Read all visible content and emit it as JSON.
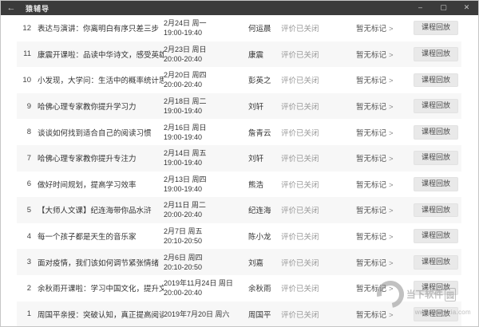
{
  "window": {
    "title": "猿辅导",
    "back_icon": "←",
    "controls": {
      "minimize": "–",
      "maximize": "▢",
      "close": "✕"
    }
  },
  "list": {
    "chevron": ">",
    "rows": [
      {
        "num": "12",
        "title": "表达与演讲：你离明白有序只差三步",
        "date": "2月24日 周一",
        "time": "19:00-19:40",
        "teacher": "何运晨",
        "status": "评价已关闭",
        "mark": "暂无标记",
        "action": "课程回放"
      },
      {
        "num": "11",
        "title": "康震开课啦：品读中华诗文，感受英雄力量",
        "date": "2月23日 周日",
        "time": "20:00-20:40",
        "teacher": "康震",
        "status": "评价已关闭",
        "mark": "暂无标记",
        "action": "课程回放"
      },
      {
        "num": "10",
        "title": "小发现，大学问：生活中的概率统计思维",
        "date": "2月20日 周四",
        "time": "20:00-20:40",
        "teacher": "彭英之",
        "status": "评价已关闭",
        "mark": "暂无标记",
        "action": "课程回放"
      },
      {
        "num": "9",
        "title": "哈佛心理专家教你提升学习力",
        "date": "2月18日 周二",
        "time": "19:00-19:40",
        "teacher": "刘轩",
        "status": "评价已关闭",
        "mark": "暂无标记",
        "action": "课程回放"
      },
      {
        "num": "8",
        "title": "谈谈如何找到适合自己的阅读习惯",
        "date": "2月16日 周日",
        "time": "19:00-19:40",
        "teacher": "詹青云",
        "status": "评价已关闭",
        "mark": "暂无标记",
        "action": "课程回放"
      },
      {
        "num": "7",
        "title": "哈佛心理专家教你提升专注力",
        "date": "2月14日 周五",
        "time": "19:00-19:40",
        "teacher": "刘轩",
        "status": "评价已关闭",
        "mark": "暂无标记",
        "action": "课程回放"
      },
      {
        "num": "6",
        "title": "做好时间规划，提高学习效率",
        "date": "2月13日 周四",
        "time": "19:00-19:40",
        "teacher": "熊浩",
        "status": "评价已关闭",
        "mark": "暂无标记",
        "action": "课程回放"
      },
      {
        "num": "5",
        "title": "【大师人文课】纪连海带你品水浒",
        "date": "2月11日 周二",
        "time": "20:00-20:40",
        "teacher": "纪连海",
        "status": "评价已关闭",
        "mark": "暂无标记",
        "action": "课程回放"
      },
      {
        "num": "4",
        "title": "每一个孩子都是天生的音乐家",
        "date": "2月7日 周五",
        "time": "20:10-20:50",
        "teacher": "陈小龙",
        "status": "评价已关闭",
        "mark": "暂无标记",
        "action": "课程回放"
      },
      {
        "num": "3",
        "title": "面对疫情，我们该如何调节紧张情绪",
        "date": "2月6日 周四",
        "time": "20:10-20:50",
        "teacher": "刘嘉",
        "status": "评价已关闭",
        "mark": "暂无标记",
        "action": "课程回放"
      },
      {
        "num": "2",
        "title": "余秋雨开课啦：学习中国文化，提升文学素养",
        "date": "2019年11月24日 周日",
        "time": "20:00-20:40",
        "teacher": "余秋雨",
        "status": "评价已关闭",
        "mark": "暂无标记",
        "action": "课程回放"
      },
      {
        "num": "1",
        "title": "周国平亲授：突破认知，真正提高阅读与写作能力",
        "date": "2019年7月20日 周六",
        "time": "",
        "teacher": "周国平",
        "status": "评价已关闭",
        "mark": "暂无标记",
        "action": "课程回放"
      }
    ]
  },
  "watermark": {
    "site_name": "当下软件",
    "site_suffix": "园",
    "url": "www.downxia.com"
  },
  "colors": {
    "titlebar_bg": "#3b3b3b",
    "row_alt_bg": "#f7f7f7",
    "status_text": "#9b9b9b",
    "button_bg": "#e9e9e9"
  }
}
